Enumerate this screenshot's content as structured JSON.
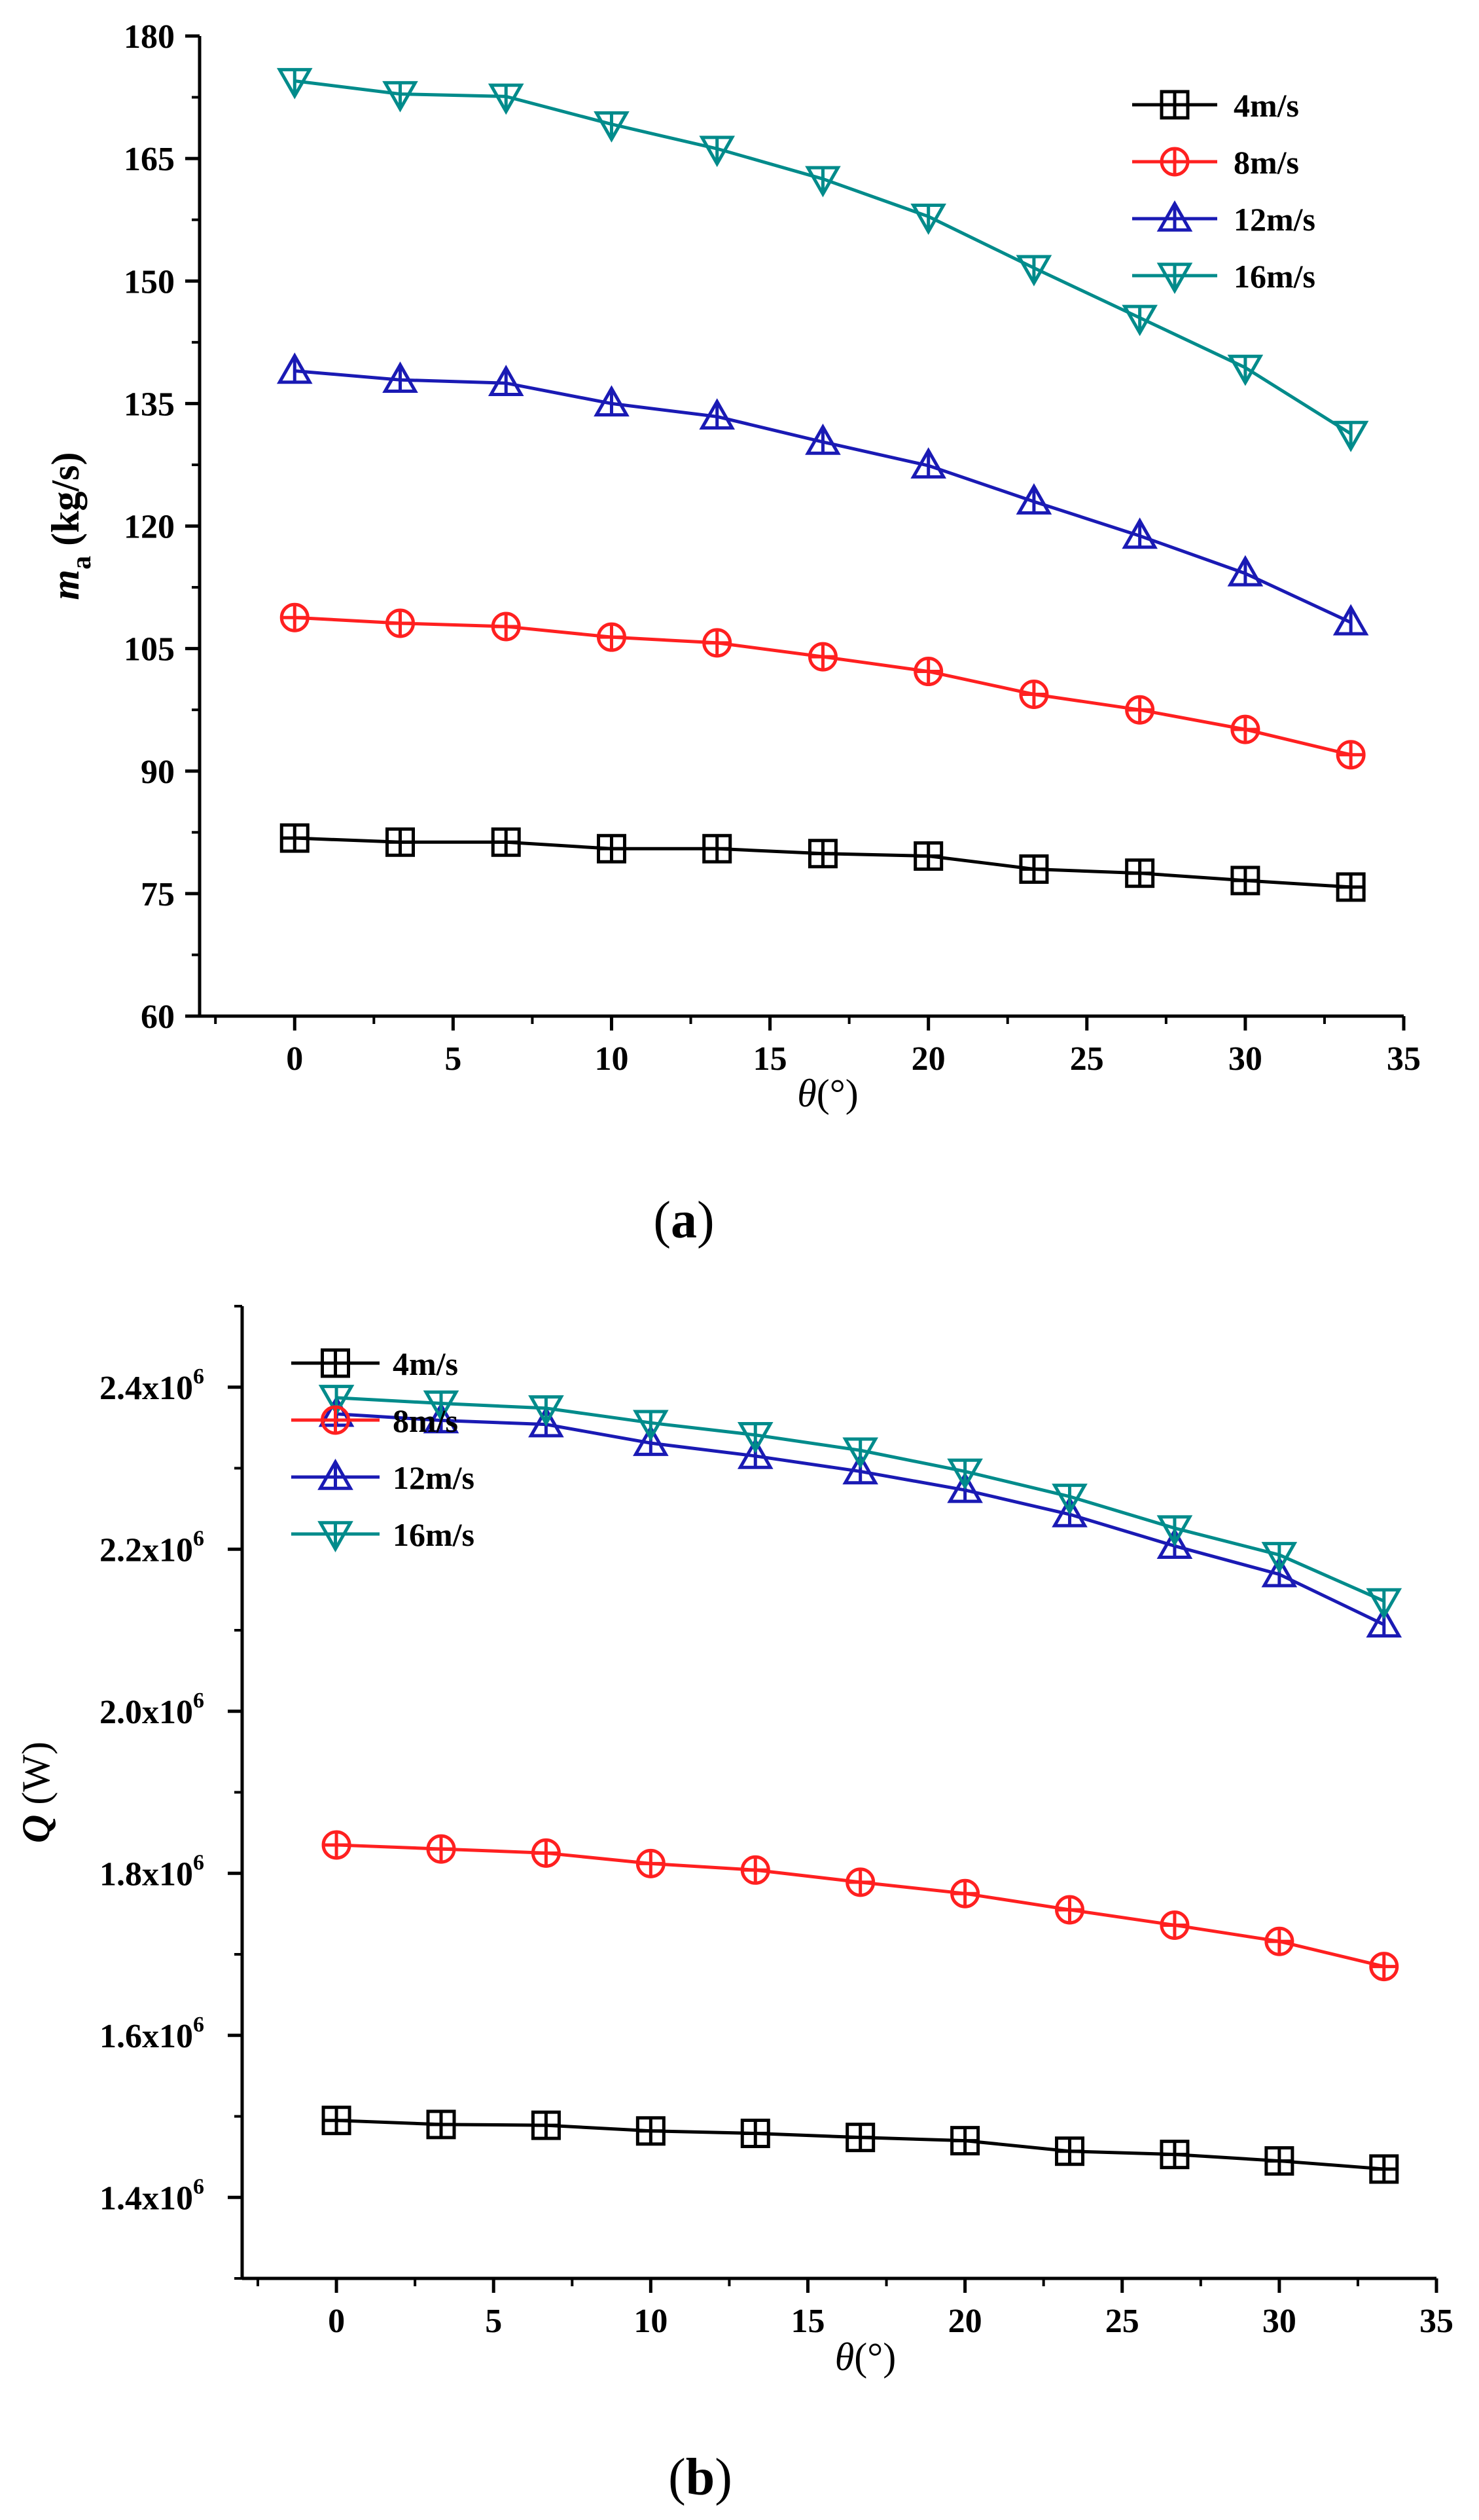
{
  "chart_data": [
    {
      "id": "a",
      "panel_label": "(a)",
      "type": "line",
      "title": "",
      "xlabel_symbol": "θ",
      "xlabel_unit": "(°)",
      "ylabel_symbol": "m",
      "ylabel_subscript": "a",
      "ylabel_unit": "(kg/s)",
      "xlim": [
        -3,
        35
      ],
      "ylim": [
        60,
        180
      ],
      "xticks": [
        0,
        5,
        10,
        15,
        20,
        25,
        30,
        35
      ],
      "yticks": [
        60,
        75,
        90,
        105,
        120,
        135,
        150,
        165,
        180
      ],
      "ytick_labels": [
        "60",
        "75",
        "90",
        "105",
        "120",
        "135",
        "150",
        "165",
        "180"
      ],
      "legend_position": "top-right",
      "x": [
        0,
        3.33,
        6.67,
        10,
        13.33,
        16.67,
        20,
        23.33,
        26.67,
        30,
        33.33
      ],
      "series": [
        {
          "name": "4m/s",
          "color": "#000000",
          "marker": "square",
          "values": [
            81.8,
            81.3,
            81.3,
            80.5,
            80.5,
            79.9,
            79.6,
            78.0,
            77.5,
            76.6,
            75.8
          ]
        },
        {
          "name": "8m/s",
          "color": "#ff2020",
          "marker": "circle",
          "values": [
            108.8,
            108.1,
            107.7,
            106.4,
            105.7,
            104.0,
            102.2,
            99.4,
            97.5,
            95.1,
            92.0
          ]
        },
        {
          "name": "12m/s",
          "color": "#1a1ab4",
          "marker": "triangle-up",
          "values": [
            139.0,
            137.9,
            137.5,
            135.0,
            133.4,
            130.3,
            127.4,
            123.0,
            118.8,
            114.2,
            108.2
          ]
        },
        {
          "name": "16m/s",
          "color": "#008b8b",
          "marker": "triangle-down",
          "values": [
            174.5,
            172.9,
            172.6,
            169.2,
            166.2,
            162.5,
            157.9,
            151.6,
            145.5,
            139.4,
            131.3
          ]
        }
      ]
    },
    {
      "id": "b",
      "panel_label": "(b)",
      "type": "line",
      "title": "",
      "xlabel_symbol": "θ",
      "xlabel_unit": "(°)",
      "ylabel_symbol": "Q",
      "ylabel_subscript": "",
      "ylabel_unit": "(W)",
      "xlim": [
        -3,
        35
      ],
      "ylim": [
        1300000,
        2500000
      ],
      "xticks": [
        0,
        5,
        10,
        15,
        20,
        25,
        30,
        35
      ],
      "yticks": [
        1400000,
        1600000,
        1800000,
        2000000,
        2200000,
        2400000
      ],
      "ytick_labels": [
        "1.4x10",
        "1.6x10",
        "1.8x10",
        "2.0x10",
        "2.2x10",
        "2.4x10"
      ],
      "ytick_exponent": "6",
      "legend_position": "center-left",
      "x": [
        0,
        3.33,
        6.67,
        10,
        13.33,
        16.67,
        20,
        23.33,
        26.67,
        30,
        33.33
      ],
      "series": [
        {
          "name": "4m/s",
          "color": "#000000",
          "marker": "square",
          "values": [
            1495000,
            1490000,
            1489000,
            1482000,
            1479000,
            1474000,
            1470000,
            1457000,
            1453000,
            1445000,
            1435000
          ]
        },
        {
          "name": "8m/s",
          "color": "#ff2020",
          "marker": "circle",
          "values": [
            1835000,
            1830000,
            1825000,
            1812000,
            1804000,
            1789000,
            1775000,
            1755000,
            1736000,
            1716000,
            1685000
          ]
        },
        {
          "name": "12m/s",
          "color": "#1a1ab4",
          "marker": "triangle-up",
          "values": [
            2367000,
            2359000,
            2354000,
            2331000,
            2315000,
            2296000,
            2273000,
            2243000,
            2204000,
            2169000,
            2107000
          ]
        },
        {
          "name": "16m/s",
          "color": "#008b8b",
          "marker": "triangle-down",
          "values": [
            2387000,
            2380000,
            2374000,
            2356000,
            2341000,
            2322000,
            2296000,
            2265000,
            2226000,
            2193000,
            2136000
          ]
        }
      ]
    }
  ]
}
